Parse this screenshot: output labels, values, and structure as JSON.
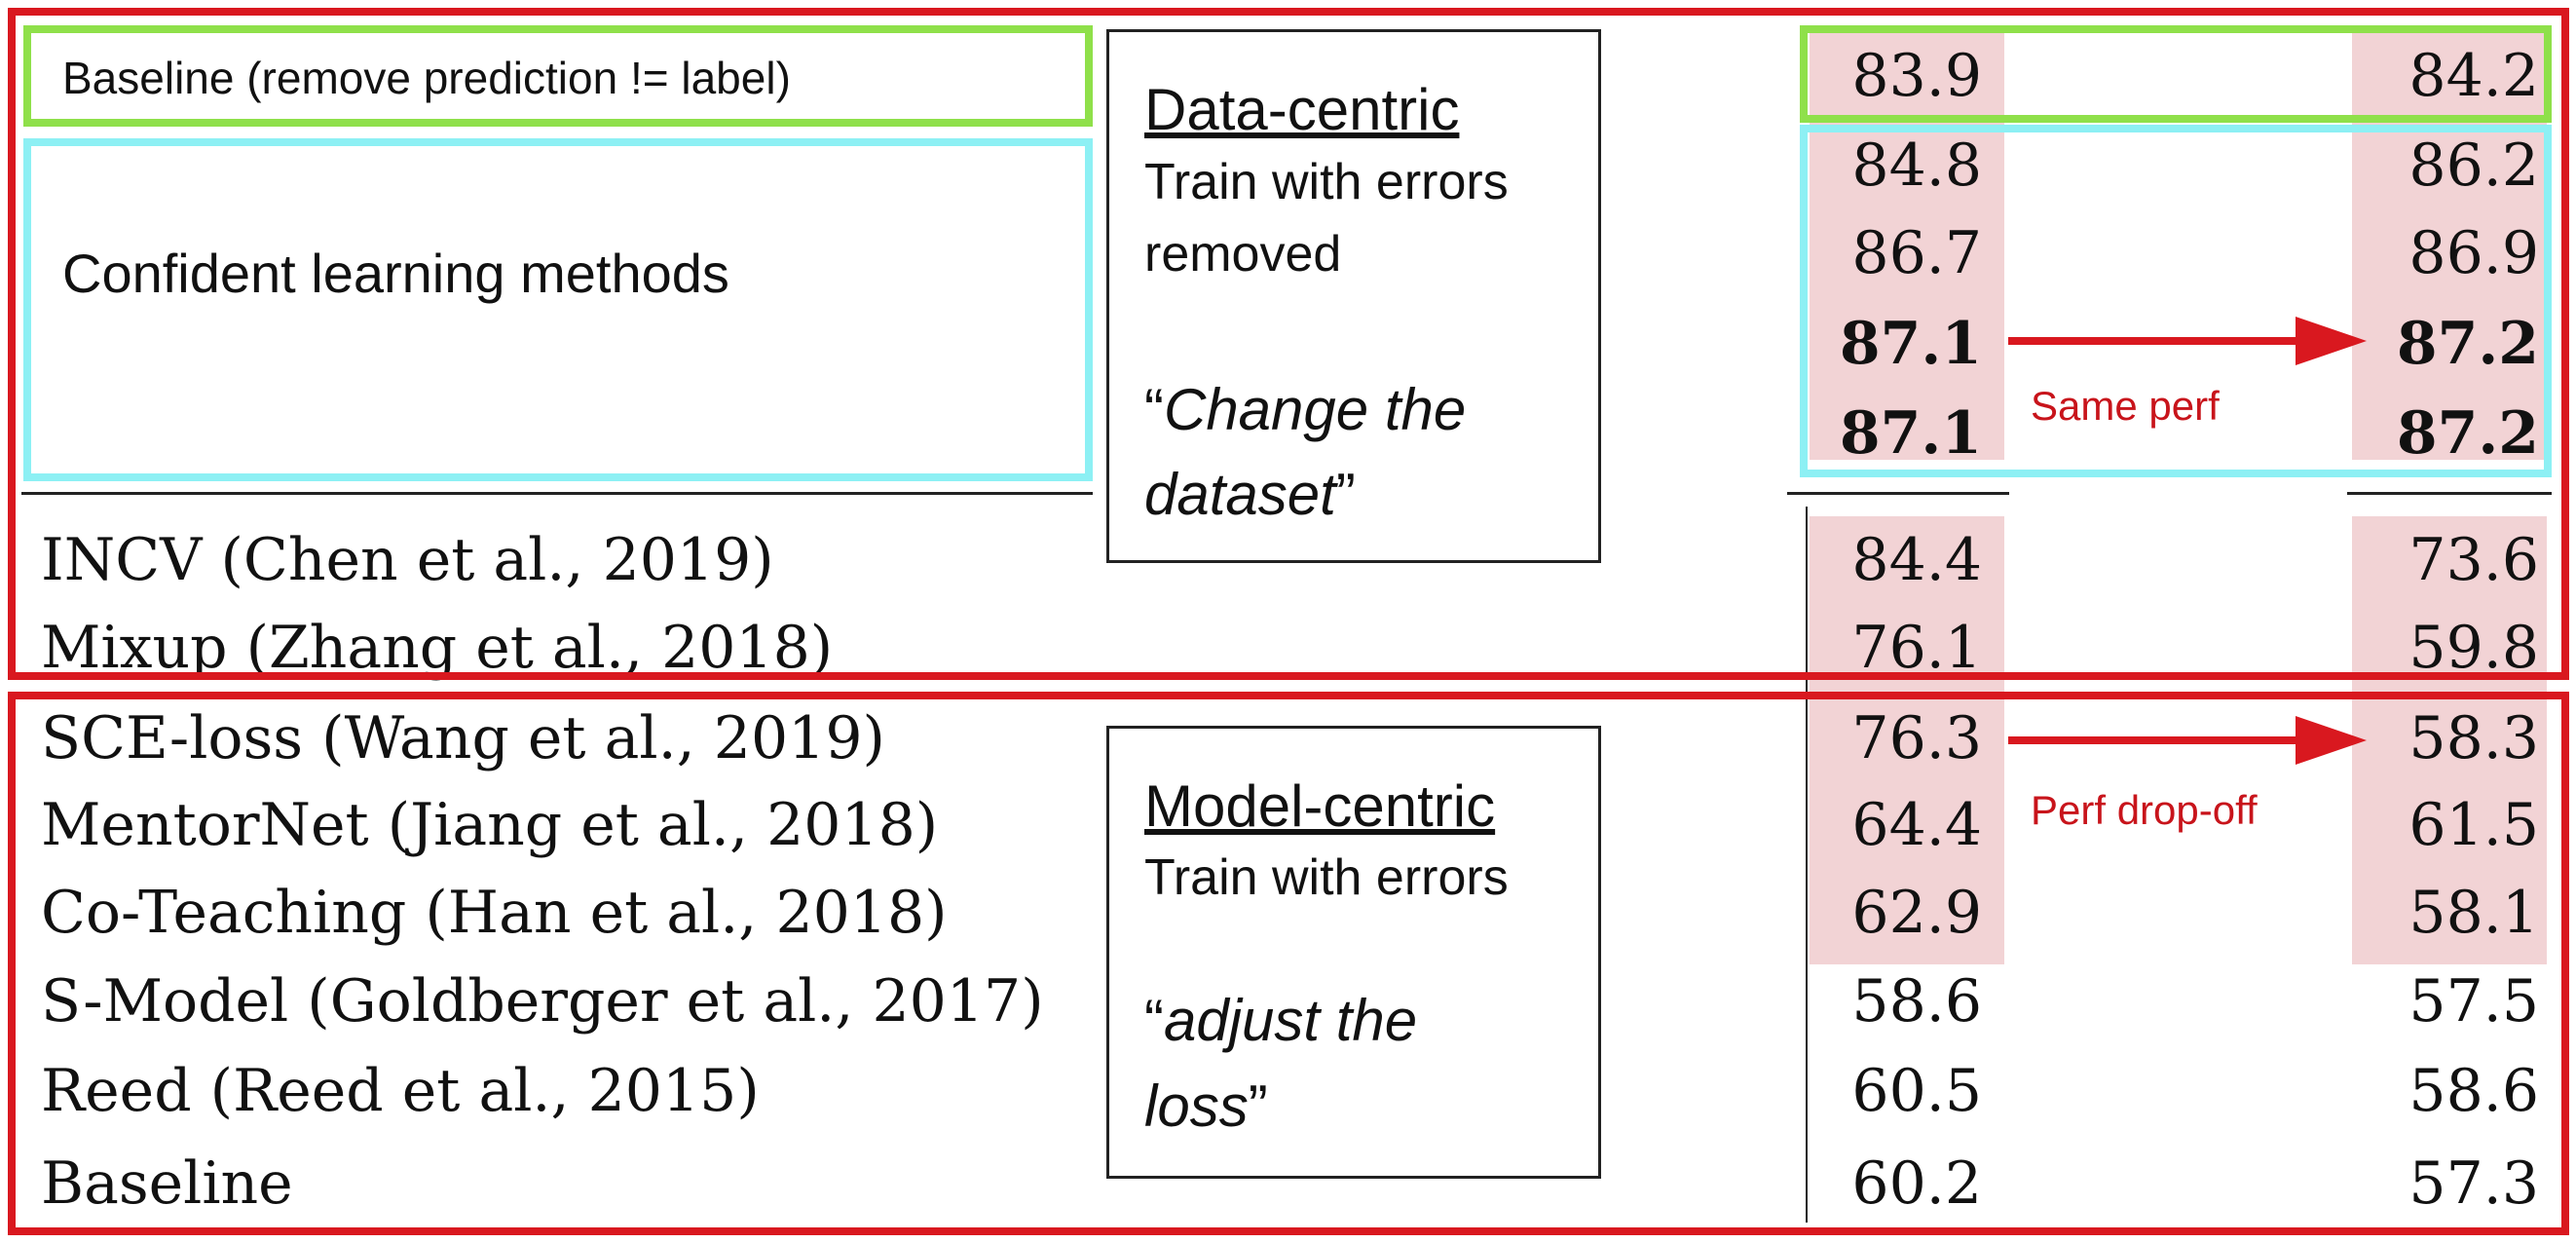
{
  "top_section": {
    "baseline_label": "Baseline (remove prediction != label)",
    "confident_label": "Confident learning methods",
    "rows": [
      {
        "method": "INCV (Chen et al., 2019)",
        "a": "84.4",
        "b": "73.6"
      },
      {
        "method": "Mixup (Zhang et al., 2018)",
        "a": "76.1",
        "b": "59.8"
      }
    ],
    "baseline_values": {
      "a": "83.9",
      "b": "84.2"
    },
    "confident_values": [
      {
        "a": "84.8",
        "b": "86.2",
        "bold": false
      },
      {
        "a": "86.7",
        "b": "86.9",
        "bold": false
      },
      {
        "a": "87.1",
        "b": "87.2",
        "bold": true
      },
      {
        "a": "87.1",
        "b": "87.2",
        "bold": true
      }
    ],
    "annotation": "Same perf",
    "callout": {
      "heading": "Data-centric",
      "line1": "Train with errors",
      "line2": "removed",
      "quote_open": "“",
      "quote_line1": "Change the",
      "quote_line2": "dataset",
      "quote_close": "”"
    }
  },
  "bottom_section": {
    "rows": [
      {
        "method": "SCE-loss (Wang et al., 2019)",
        "a": "76.3",
        "b": "58.3",
        "shaded": true
      },
      {
        "method": "MentorNet (Jiang et al., 2018)",
        "a": "64.4",
        "b": "61.5",
        "shaded": true
      },
      {
        "method": "Co-Teaching (Han et al., 2018)",
        "a": "62.9",
        "b": "58.1",
        "shaded": true
      },
      {
        "method": "S-Model (Goldberger et al., 2017)",
        "a": "58.6",
        "b": "57.5",
        "shaded": false
      },
      {
        "method": "Reed (Reed et al., 2015)",
        "a": "60.5",
        "b": "58.6",
        "shaded": false
      },
      {
        "method": "Baseline",
        "a": "60.2",
        "b": "57.3",
        "shaded": false
      }
    ],
    "annotation": "Perf drop-off",
    "callout": {
      "heading": "Model-centric",
      "line1": "Train with errors",
      "quote_open": "“",
      "quote_line1": "adjust the",
      "quote_line2": "loss",
      "quote_close": "”"
    }
  },
  "colors": {
    "frame_red": "#d9181f",
    "baseline_green": "#8fe04a",
    "confident_cyan": "#8df0f4",
    "shade_pink": "#f2d3d5"
  }
}
